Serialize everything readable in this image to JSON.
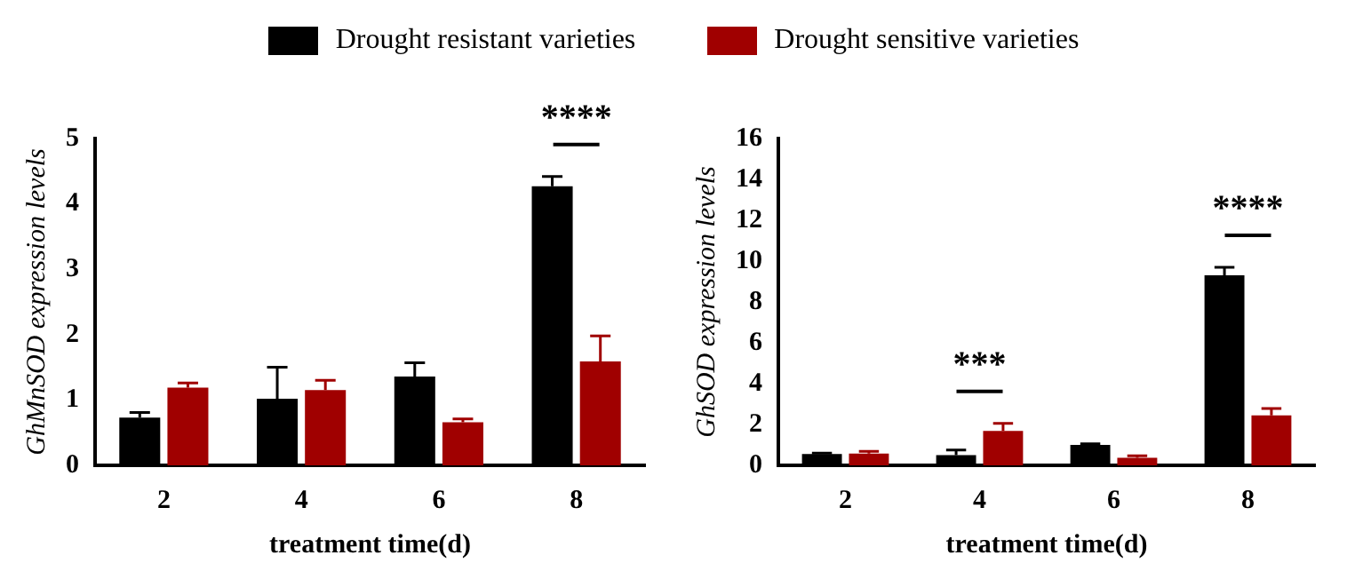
{
  "chart_data": [
    {
      "type": "bar",
      "xlabel": "treatment time(d)",
      "ylabel": "GhMnSOD expression levels",
      "categories": [
        "2",
        "4",
        "6",
        "8"
      ],
      "legend": "top",
      "ylim": [
        0,
        5
      ],
      "yticks": [
        0,
        1,
        2,
        3,
        4,
        5
      ],
      "grid": false,
      "series": [
        {
          "name": "Drought resistant varieties",
          "color": "#000000",
          "values": [
            0.73,
            1.02,
            1.36,
            4.27
          ],
          "errors": [
            [
              0.73,
              0.81
            ],
            [
              1.02,
              1.5
            ],
            [
              1.36,
              1.57
            ],
            [
              4.27,
              4.42
            ]
          ]
        },
        {
          "name": "Drought sensitive varieties",
          "color": "#a00000",
          "values": [
            1.19,
            1.15,
            0.66,
            1.59
          ],
          "errors": [
            [
              1.19,
              1.26
            ],
            [
              1.15,
              1.3
            ],
            [
              0.66,
              0.71
            ],
            [
              1.59,
              1.98
            ]
          ]
        }
      ],
      "annotations": [
        "****"
      ]
    },
    {
      "type": "bar",
      "xlabel": "treatment time(d)",
      "ylabel": "GhSOD expression levels",
      "categories": [
        "2",
        "4",
        "6",
        "8"
      ],
      "ylim": [
        0,
        16
      ],
      "yticks": [
        0,
        2,
        4,
        6,
        8,
        10,
        12,
        14,
        16
      ],
      "grid": false,
      "series": [
        {
          "color": "#000000",
          "values": [
            0.55,
            0.5,
            1.0,
            9.3
          ],
          "errors": [
            [
              0.55,
              0.6
            ],
            [
              0.5,
              0.75
            ],
            [
              1.0,
              1.05
            ],
            [
              9.3,
              9.7
            ]
          ]
        },
        {
          "color": "#a00000",
          "values": [
            0.58,
            1.68,
            0.37,
            2.45
          ],
          "errors": [
            [
              0.58,
              0.68
            ],
            [
              1.68,
              2.05
            ],
            [
              0.37,
              0.47
            ],
            [
              2.45,
              2.78
            ]
          ]
        }
      ],
      "annotations": [
        "***",
        "****"
      ]
    }
  ]
}
